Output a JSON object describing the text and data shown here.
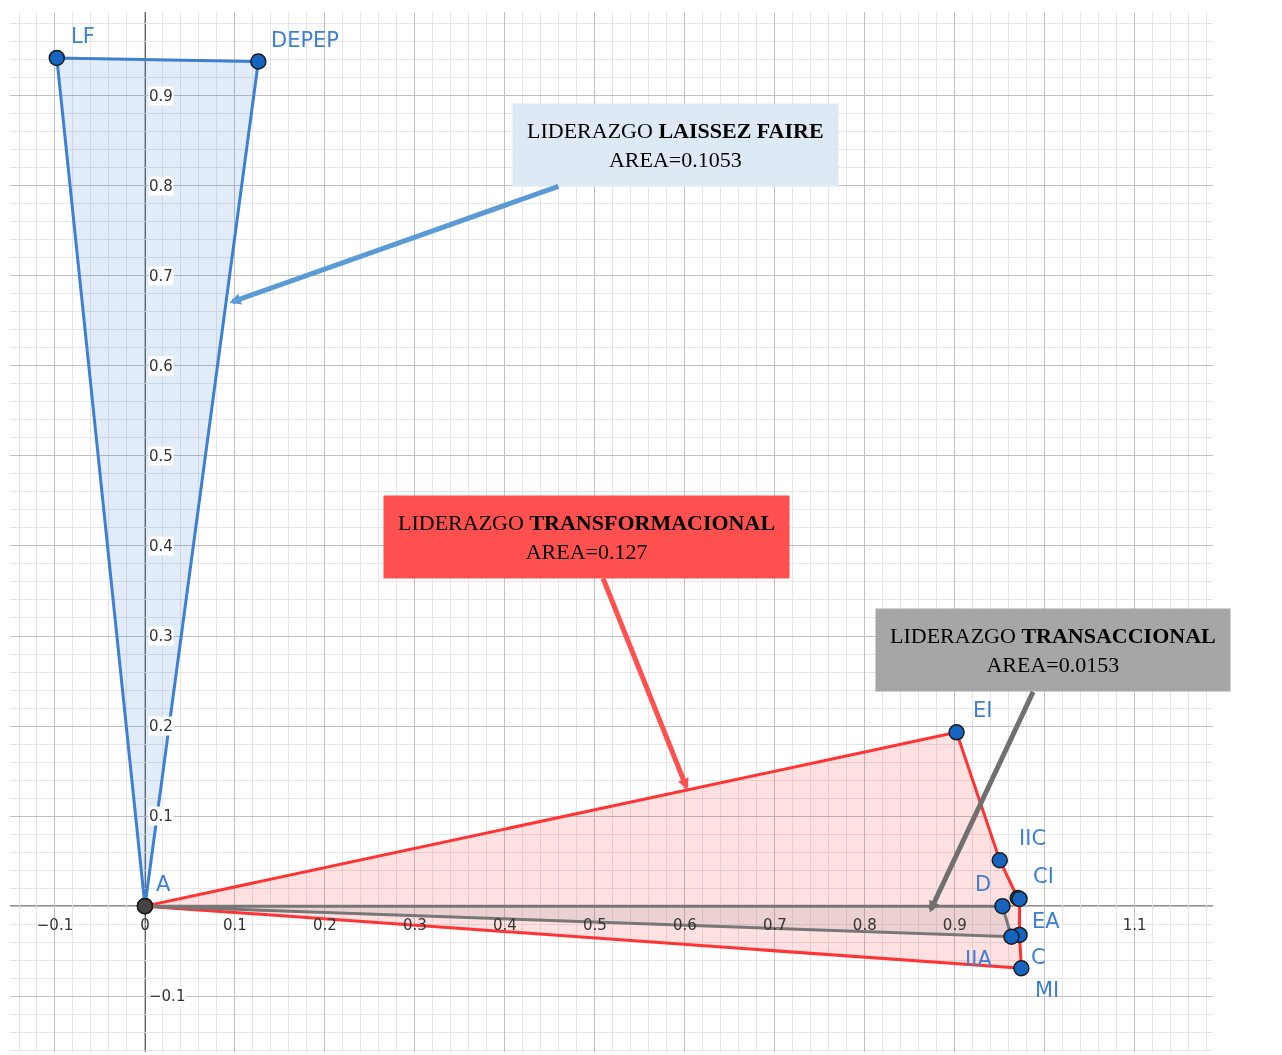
{
  "chart_data": {
    "type": "area",
    "series": [
      {
        "color": "#3d7fd1",
        "x": [
          0,
          -0.098,
          0.126
        ],
        "values": [
          0,
          0.942,
          0.938
        ],
        "value_labels": [
          "A",
          "LF",
          "DEPEP"
        ],
        "colors": [
          "#444444",
          "#1565c0",
          "#1565c0"
        ]
      },
      {
        "color": "#ff3333",
        "x": [
          0,
          0.902,
          0.95,
          0.97,
          0.972,
          0.972,
          0.974
        ],
        "values": [
          0,
          0.193,
          0.051,
          0.009,
          0.008,
          -0.032,
          -0.069
        ],
        "value_labels": [
          null,
          "EI",
          "IIC",
          "CI",
          "EA",
          "C",
          "MI"
        ],
        "colors": [
          "#444444",
          "#1565c0",
          "#1565c0",
          "#1565c0",
          "#1565c0",
          "#1565c0",
          "#1565c0"
        ]
      },
      {
        "color": "#777777",
        "x": [
          0,
          0.953,
          0.963
        ],
        "values": [
          0,
          0.0,
          -0.034
        ],
        "value_labels": [
          null,
          "D",
          "IIA"
        ],
        "colors": [
          "#444444",
          "#1565c0",
          "#1565c0"
        ]
      }
    ],
    "marker": "circle",
    "xlim": [
      -0.15,
      1.187
    ],
    "ylim": [
      -0.162,
      0.993
    ],
    "xticks": [
      {
        "value": -0.1,
        "label": "−0.1"
      },
      0,
      0.1,
      0.2,
      0.3,
      0.4,
      0.5,
      0.6,
      0.7,
      0.8,
      0.9,
      {
        "value": 1,
        "label": null
      },
      1.1
    ],
    "yticks": [
      {
        "value": -0.1,
        "label": "−0.1"
      },
      {
        "value": 0,
        "label": null
      },
      0.1,
      0.2,
      0.3,
      0.4,
      0.5,
      0.6,
      0.7,
      0.8,
      0.9
    ],
    "grid": true,
    "annotations": [
      {
        "text": "LIDERAZGO LAISSEZ FAIRE\nAREA=0.1053",
        "x": 0.094,
        "y": 0.67
      },
      {
        "text": "LIDERAZGO TRANSFORMACIONAL\nAREA=0.127",
        "x": 0.603,
        "y": 0.129
      },
      {
        "text": "LIDERAZGO TRANSACCIONAL\nAREA=0.0153",
        "x": 0.872,
        "y": -0.007
      }
    ]
  }
}
